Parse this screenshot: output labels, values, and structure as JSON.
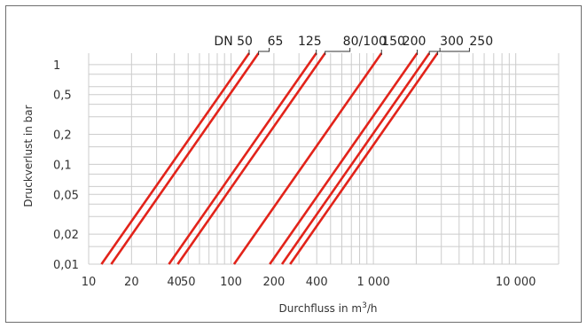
{
  "chart_data": {
    "type": "line",
    "title": "",
    "xlabel_parts": [
      "Durchfluss in m",
      "3",
      "/h"
    ],
    "ylabel": "Druckverlust in bar",
    "x_scale": "log",
    "y_scale": "log",
    "xlim": [
      10,
      20000
    ],
    "ylim": [
      0.01,
      1.3
    ],
    "grid": true,
    "x_ticks": [
      {
        "value": 10,
        "label": "10"
      },
      {
        "value": 20,
        "label": "20"
      },
      {
        "value": 40,
        "label": "40"
      },
      {
        "value": 50,
        "label": "50"
      },
      {
        "value": 100,
        "label": "100"
      },
      {
        "value": 200,
        "label": "200"
      },
      {
        "value": 400,
        "label": "400"
      },
      {
        "value": 1000,
        "label": "1 000"
      },
      {
        "value": 10000,
        "label": "10 000"
      }
    ],
    "x_grid": [
      10,
      20,
      30,
      40,
      50,
      60,
      70,
      80,
      90,
      100,
      200,
      300,
      400,
      500,
      600,
      700,
      800,
      900,
      1000,
      2000,
      3000,
      4000,
      5000,
      6000,
      7000,
      8000,
      9000,
      10000,
      20000
    ],
    "y_ticks": [
      {
        "value": 0.01,
        "label": "0,01"
      },
      {
        "value": 0.02,
        "label": "0,02"
      },
      {
        "value": 0.05,
        "label": "0,05"
      },
      {
        "value": 0.1,
        "label": "0,1"
      },
      {
        "value": 0.2,
        "label": "0,2"
      },
      {
        "value": 0.5,
        "label": "0,5"
      },
      {
        "value": 1,
        "label": "1"
      }
    ],
    "y_grid": [
      0.01,
      0.015,
      0.02,
      0.03,
      0.04,
      0.05,
      0.06,
      0.08,
      0.1,
      0.15,
      0.2,
      0.3,
      0.4,
      0.5,
      0.6,
      0.8,
      1
    ],
    "series_color": "#e2231a",
    "series": [
      {
        "x": [
          12.3,
          134
        ],
        "y": [
          0.01,
          1.3
        ]
      },
      {
        "x": [
          14.4,
          156
        ],
        "y": [
          0.01,
          1.3
        ]
      },
      {
        "x": [
          36.6,
          397
        ],
        "y": [
          0.01,
          1.3
        ]
      },
      {
        "x": [
          42.2,
          458
        ],
        "y": [
          0.01,
          1.3
        ]
      },
      {
        "x": [
          105,
          1140
        ],
        "y": [
          0.01,
          1.3
        ]
      },
      {
        "x": [
          187,
          2030
        ],
        "y": [
          0.01,
          1.3
        ]
      },
      {
        "x": [
          228,
          2470
        ],
        "y": [
          0.01,
          1.3
        ]
      },
      {
        "x": [
          260,
          2820
        ],
        "y": [
          0.01,
          1.3
        ]
      }
    ],
    "dn_labels": [
      {
        "text": "DN 50",
        "x": 134
      },
      {
        "text": "65",
        "x": 156
      },
      {
        "text": "125",
        "x": 397
      },
      {
        "text": "80/100",
        "x": 458
      },
      {
        "text": "150",
        "x": 1140
      },
      {
        "text": "200",
        "x": 2030
      },
      {
        "text": "300",
        "x": 2470
      },
      {
        "text": "250",
        "x": 2820
      }
    ]
  }
}
